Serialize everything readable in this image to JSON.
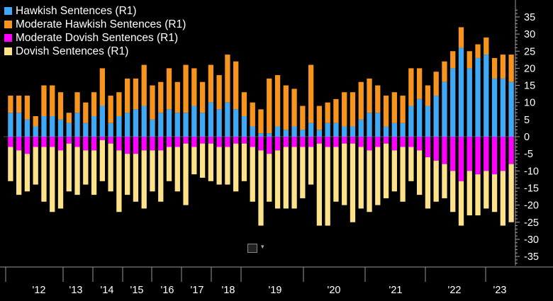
{
  "legend": {
    "items": [
      {
        "label": "Hawkish Sentences (R1)",
        "color": "#3fa9f5"
      },
      {
        "label": "Moderate Hawkish Sentences (R1)",
        "color": "#f7941d"
      },
      {
        "label": "Moderate Dovish Sentences (R1)",
        "color": "#ff00ff"
      },
      {
        "label": "Dovish Sentences (R1)",
        "color": "#fde28a"
      }
    ]
  },
  "chart_data": {
    "type": "bar",
    "stacked": true,
    "title": "",
    "xlabel": "",
    "ylabel": "",
    "ylim": [
      -37,
      37
    ],
    "yticks": [
      35,
      30,
      25,
      20,
      15,
      10,
      5,
      0,
      -5,
      -10,
      -15,
      -20,
      -25,
      -30,
      -35
    ],
    "year_labels": [
      "'12",
      "'13",
      "'14",
      "'15",
      "'16",
      "'17",
      "'18",
      "'19",
      "'20",
      "'21",
      "'22",
      "'23"
    ],
    "series": [
      {
        "name": "Hawkish Sentences (R1)",
        "values": [
          7,
          7,
          5,
          3,
          6,
          6,
          5,
          4,
          7,
          4,
          6,
          9,
          4,
          6,
          7,
          8,
          9,
          5,
          7,
          8,
          7,
          7,
          9,
          7,
          10,
          8,
          10,
          8,
          6,
          3,
          1,
          1,
          3,
          2,
          3,
          2,
          4,
          2,
          4,
          4,
          3,
          3,
          5,
          7,
          7,
          3,
          4,
          4,
          9,
          11,
          9,
          12,
          16,
          20,
          26,
          20,
          23,
          24,
          17,
          17,
          16
        ]
      },
      {
        "name": "Moderate Hawkish Sentences (R1)",
        "values": [
          5,
          5,
          7,
          3,
          9,
          9,
          8,
          3,
          6,
          6,
          7,
          11,
          8,
          7,
          10,
          9,
          12,
          10,
          9,
          12,
          9,
          14,
          11,
          9,
          11,
          10,
          14,
          14,
          7,
          7,
          7,
          16,
          15,
          13,
          11,
          7,
          17,
          7,
          6,
          7,
          10,
          10,
          11,
          10,
          8,
          9,
          9,
          8,
          11,
          9,
          6,
          7,
          6,
          5,
          6,
          5,
          4,
          5,
          6,
          7,
          8
        ]
      },
      {
        "name": "Moderate Dovish Sentences (R1)",
        "values": [
          -3,
          -4,
          -5,
          -3,
          -3,
          -3,
          -4,
          -2,
          -3,
          -4,
          -4,
          -1,
          -2,
          -4,
          -5,
          -5,
          -4,
          -4,
          -4,
          -3,
          -3,
          -2,
          -3,
          -2,
          -2,
          -3,
          -3,
          -2,
          -2,
          -3,
          -4,
          -5,
          -4,
          -3,
          -3,
          -3,
          -3,
          -2,
          -3,
          -3,
          -2,
          -2,
          -3,
          -4,
          -3,
          -2,
          -4,
          -3,
          -3,
          -4,
          -6,
          -7,
          -8,
          -10,
          -13,
          -10,
          -11,
          -10,
          -11,
          -10,
          -8
        ]
      },
      {
        "name": "Dovish Sentences (R1)",
        "values": [
          -10,
          -13,
          -11,
          -11,
          -16,
          -19,
          -17,
          -14,
          -14,
          -10,
          -13,
          -12,
          -14,
          -18,
          -12,
          -14,
          -17,
          -12,
          -15,
          -10,
          -13,
          -18,
          -8,
          -10,
          -11,
          -11,
          -11,
          -14,
          -11,
          -16,
          -22,
          -14,
          -17,
          -18,
          -18,
          -15,
          -11,
          -24,
          -23,
          -16,
          -18,
          -23,
          -18,
          -18,
          -17,
          -16,
          -12,
          -16,
          -10,
          -13,
          -15,
          -12,
          -10,
          -12,
          -13,
          -13,
          -12,
          -11,
          -11,
          -16,
          -17
        ]
      }
    ]
  }
}
